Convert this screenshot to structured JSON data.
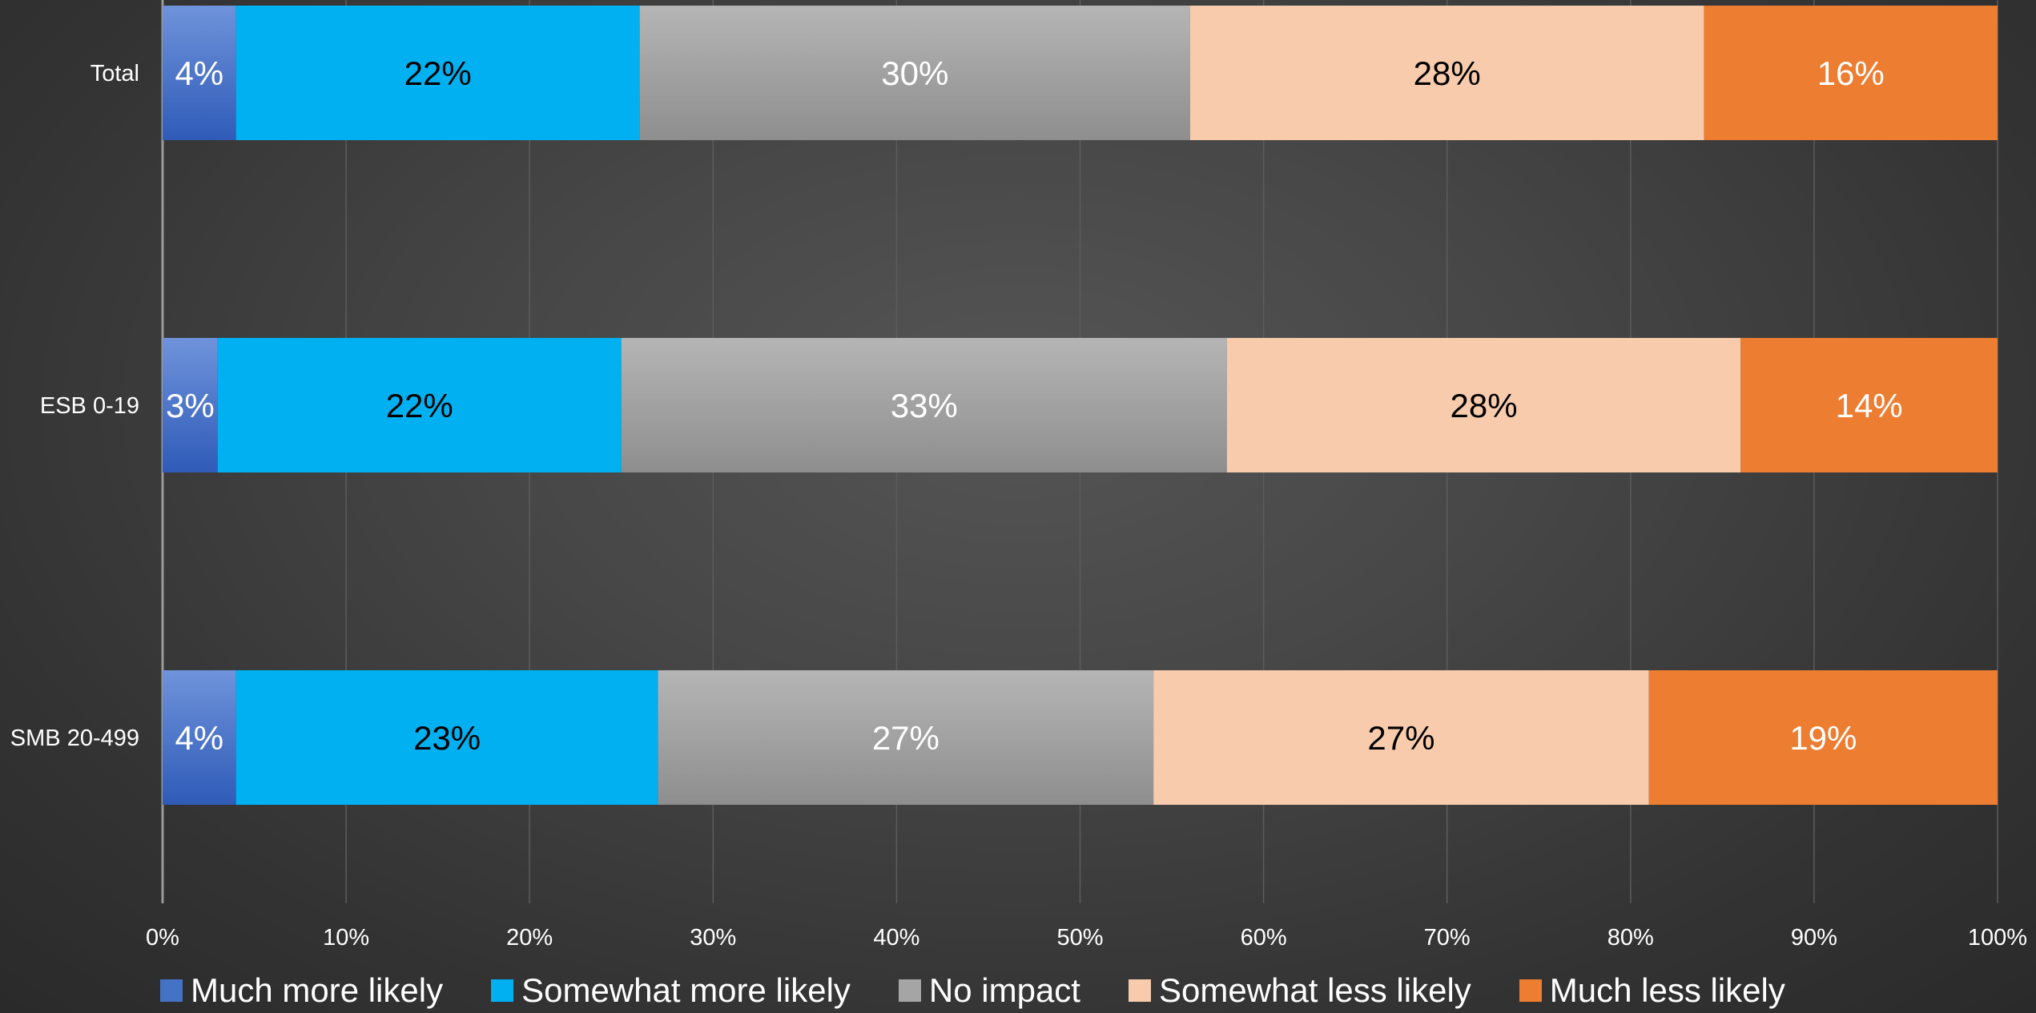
{
  "chart_data": {
    "type": "bar",
    "orientation": "horizontal",
    "stacked": "percent",
    "categories": [
      "Total",
      "ESB 0-19",
      "SMB 20-499"
    ],
    "series": [
      {
        "name": "Much more likely",
        "color": "#4472C4",
        "values": [
          4,
          3,
          4
        ],
        "labels": [
          "4%",
          "3%",
          "4%"
        ]
      },
      {
        "name": "Somewhat more likely",
        "color": "#00B0F0",
        "values": [
          22,
          22,
          23
        ],
        "labels": [
          "22%",
          "22%",
          "23%"
        ]
      },
      {
        "name": "No impact",
        "color": "#A5A5A5",
        "values": [
          30,
          33,
          27
        ],
        "labels": [
          "30%",
          "33%",
          "27%"
        ]
      },
      {
        "name": "Somewhat less likely",
        "color": "#F8CBAD",
        "values": [
          28,
          28,
          27
        ],
        "labels": [
          "28%",
          "28%",
          "27%"
        ]
      },
      {
        "name": "Much less likely",
        "color": "#ED7D31",
        "values": [
          16,
          14,
          19
        ],
        "labels": [
          "16%",
          "14%",
          "19%"
        ]
      }
    ],
    "xlim": [
      0,
      100
    ],
    "xticks": [
      "0%",
      "10%",
      "20%",
      "30%",
      "40%",
      "50%",
      "60%",
      "70%",
      "80%",
      "90%",
      "100%"
    ],
    "grid": true,
    "legend_position": "bottom"
  }
}
